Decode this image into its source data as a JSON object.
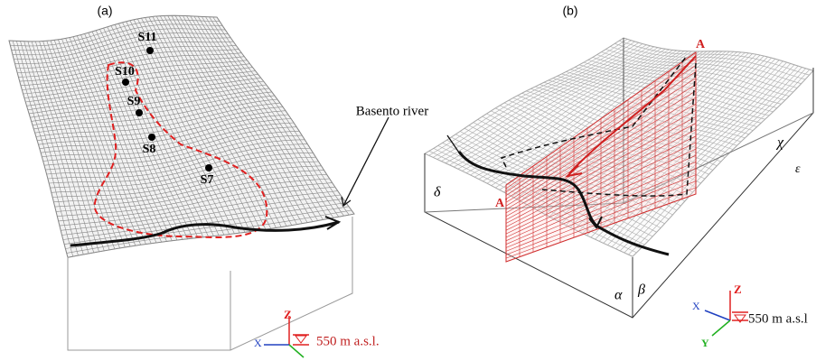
{
  "panel_a": {
    "label": "(a)",
    "stations": [
      "S11",
      "S10",
      "S9",
      "S8",
      "S7"
    ],
    "river_label": "Basento river",
    "axes": {
      "z": "Z",
      "x": "X",
      "datum": "550 m a.s.l."
    }
  },
  "panel_b": {
    "label": "(b)",
    "section": [
      "A",
      "A'"
    ],
    "corners": [
      "χ",
      "ε",
      "δ",
      "α",
      "β"
    ],
    "axes": {
      "z": "Z",
      "x": "X",
      "y": "Y",
      "datum": "550 m a.s.l"
    }
  }
}
